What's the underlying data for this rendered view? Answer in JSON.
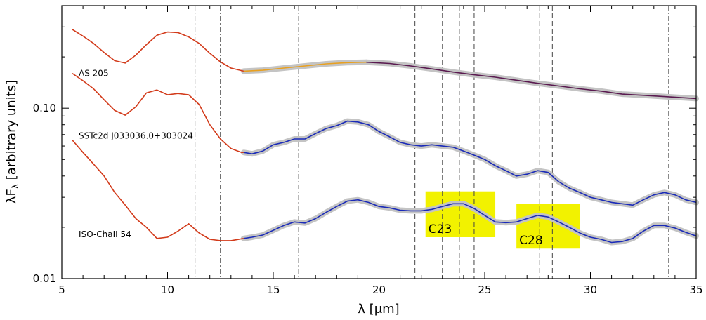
{
  "chart_data": {
    "type": "line",
    "xlabel": "λ [μm]",
    "ylabel": "λF_λ [arbitrary units]",
    "ylabel_main": "λF",
    "ylabel_sub": "λ",
    "ylabel_rest": " [arbitrary units]",
    "xlim": [
      5,
      35
    ],
    "ylim": [
      0.01,
      0.4
    ],
    "yscale": "log",
    "x_ticks": [
      5,
      10,
      15,
      20,
      25,
      30,
      35
    ],
    "x_tick_labels": [
      "5",
      "10",
      "15",
      "20",
      "25",
      "30",
      "35"
    ],
    "y_ticks": [
      0.01,
      0.1
    ],
    "y_tick_labels": [
      "0.01",
      "0.10"
    ],
    "vlines_dashdot": [
      11.3,
      12.5,
      16.2,
      33.7
    ],
    "vlines_dashed": [
      21.7,
      23.0,
      23.8,
      24.5,
      27.6,
      28.2
    ],
    "highlight_boxes": [
      {
        "label": "C23",
        "x": [
          22.2,
          25.5
        ],
        "y": [
          0.0175,
          0.0325
        ],
        "color": "#f2f200"
      },
      {
        "label": "C28",
        "x": [
          26.5,
          29.5
        ],
        "y": [
          0.015,
          0.0275
        ],
        "color": "#f2f200"
      }
    ],
    "sources": [
      {
        "label": "AS 205",
        "label_x": 5.4,
        "label_y": 0.16,
        "segments": [
          {
            "color": "#d23a1a",
            "points": [
              [
                5.5,
                0.29
              ],
              [
                6.0,
                0.265
              ],
              [
                6.5,
                0.24
              ],
              [
                7.0,
                0.212
              ],
              [
                7.5,
                0.19
              ],
              [
                8.0,
                0.184
              ],
              [
                8.5,
                0.205
              ],
              [
                9.0,
                0.236
              ],
              [
                9.5,
                0.268
              ],
              [
                10.0,
                0.28
              ],
              [
                10.5,
                0.278
              ],
              [
                11.0,
                0.262
              ],
              [
                11.5,
                0.24
              ],
              [
                12.0,
                0.21
              ],
              [
                12.5,
                0.187
              ],
              [
                13.0,
                0.172
              ],
              [
                13.6,
                0.165
              ]
            ]
          },
          {
            "color": "#e8a020",
            "points": [
              [
                13.6,
                0.165
              ],
              [
                14.5,
                0.167
              ],
              [
                15.5,
                0.172
              ],
              [
                16.5,
                0.177
              ],
              [
                17.5,
                0.182
              ],
              [
                18.5,
                0.185
              ],
              [
                19.4,
                0.186
              ]
            ]
          },
          {
            "color": "#5a1a50",
            "points": [
              [
                19.4,
                0.186
              ],
              [
                20.5,
                0.183
              ],
              [
                21.5,
                0.177
              ],
              [
                22.5,
                0.17
              ],
              [
                23.5,
                0.163
              ],
              [
                24.5,
                0.157
              ],
              [
                25.5,
                0.152
              ],
              [
                26.5,
                0.146
              ],
              [
                27.5,
                0.14
              ],
              [
                28.5,
                0.135
              ],
              [
                29.5,
                0.13
              ],
              [
                30.5,
                0.126
              ],
              [
                31.5,
                0.121
              ],
              [
                32.5,
                0.119
              ],
              [
                33.5,
                0.117
              ],
              [
                34.5,
                0.115
              ],
              [
                35,
                0.114
              ]
            ]
          }
        ]
      },
      {
        "label": "SSTc2d J033036.0+303024",
        "label_x": 5.4,
        "label_y": 0.069,
        "segments": [
          {
            "color": "#d23a1a",
            "points": [
              [
                5.5,
                0.16
              ],
              [
                6.0,
                0.145
              ],
              [
                6.5,
                0.13
              ],
              [
                7.0,
                0.112
              ],
              [
                7.5,
                0.097
              ],
              [
                8.0,
                0.091
              ],
              [
                8.5,
                0.102
              ],
              [
                9.0,
                0.123
              ],
              [
                9.5,
                0.128
              ],
              [
                10.0,
                0.12
              ],
              [
                10.5,
                0.122
              ],
              [
                11.0,
                0.12
              ],
              [
                11.5,
                0.105
              ],
              [
                12.0,
                0.08
              ],
              [
                12.5,
                0.066
              ],
              [
                13.0,
                0.058
              ],
              [
                13.5,
                0.055
              ],
              [
                13.6,
                0.055
              ]
            ]
          },
          {
            "color": "#1a2ab8",
            "points": [
              [
                13.6,
                0.055
              ],
              [
                14.0,
                0.054
              ],
              [
                14.5,
                0.056
              ],
              [
                15.0,
                0.061
              ],
              [
                15.5,
                0.063
              ],
              [
                16.0,
                0.066
              ],
              [
                16.5,
                0.066
              ],
              [
                17.0,
                0.071
              ],
              [
                17.5,
                0.076
              ],
              [
                18.0,
                0.079
              ],
              [
                18.5,
                0.084
              ],
              [
                19.0,
                0.083
              ],
              [
                19.5,
                0.08
              ],
              [
                20.0,
                0.073
              ],
              [
                20.5,
                0.068
              ],
              [
                21.0,
                0.063
              ],
              [
                21.5,
                0.061
              ],
              [
                22.0,
                0.06
              ],
              [
                22.5,
                0.061
              ],
              [
                23.0,
                0.06
              ],
              [
                23.5,
                0.059
              ],
              [
                24.0,
                0.056
              ],
              [
                24.5,
                0.053
              ],
              [
                25.0,
                0.05
              ],
              [
                25.5,
                0.046
              ],
              [
                26.0,
                0.043
              ],
              [
                26.5,
                0.04
              ],
              [
                27.0,
                0.041
              ],
              [
                27.5,
                0.043
              ],
              [
                28.0,
                0.042
              ],
              [
                28.5,
                0.037
              ],
              [
                29.0,
                0.034
              ],
              [
                29.5,
                0.032
              ],
              [
                30.0,
                0.03
              ],
              [
                30.5,
                0.029
              ],
              [
                31.0,
                0.028
              ],
              [
                31.5,
                0.0275
              ],
              [
                32.0,
                0.027
              ],
              [
                32.5,
                0.029
              ],
              [
                33.0,
                0.031
              ],
              [
                33.5,
                0.032
              ],
              [
                34.0,
                0.031
              ],
              [
                34.5,
                0.029
              ],
              [
                35.0,
                0.028
              ]
            ]
          }
        ]
      },
      {
        "label": "ISO-ChaII 54",
        "label_x": 5.4,
        "label_y": 0.0182,
        "segments": [
          {
            "color": "#d23a1a",
            "points": [
              [
                5.5,
                0.065
              ],
              [
                6.0,
                0.055
              ],
              [
                6.5,
                0.047
              ],
              [
                7.0,
                0.04
              ],
              [
                7.5,
                0.032
              ],
              [
                8.0,
                0.027
              ],
              [
                8.5,
                0.0225
              ],
              [
                9.0,
                0.02
              ],
              [
                9.5,
                0.0172
              ],
              [
                10.0,
                0.0175
              ],
              [
                10.5,
                0.019
              ],
              [
                11.0,
                0.021
              ],
              [
                11.5,
                0.0185
              ],
              [
                12.0,
                0.017
              ],
              [
                12.5,
                0.0167
              ],
              [
                13.0,
                0.0167
              ],
              [
                13.6,
                0.0172
              ]
            ]
          },
          {
            "color": "#1a2ab8",
            "points": [
              [
                13.6,
                0.0172
              ],
              [
                14.0,
                0.0175
              ],
              [
                14.5,
                0.018
              ],
              [
                15.0,
                0.0192
              ],
              [
                15.5,
                0.0205
              ],
              [
                16.0,
                0.0215
              ],
              [
                16.5,
                0.0212
              ],
              [
                17.0,
                0.0225
              ],
              [
                17.5,
                0.0245
              ],
              [
                18.0,
                0.0265
              ],
              [
                18.5,
                0.0285
              ],
              [
                19.0,
                0.029
              ],
              [
                19.5,
                0.028
              ],
              [
                20.0,
                0.0265
              ],
              [
                20.5,
                0.026
              ],
              [
                21.0,
                0.0252
              ],
              [
                21.5,
                0.025
              ],
              [
                22.0,
                0.025
              ],
              [
                22.5,
                0.0255
              ],
              [
                23.0,
                0.0265
              ],
              [
                23.5,
                0.0275
              ],
              [
                24.0,
                0.0275
              ],
              [
                24.5,
                0.0258
              ],
              [
                25.0,
                0.0235
              ],
              [
                25.5,
                0.0215
              ],
              [
                26.0,
                0.0213
              ],
              [
                26.5,
                0.0215
              ],
              [
                27.0,
                0.0225
              ],
              [
                27.5,
                0.0235
              ],
              [
                28.0,
                0.023
              ],
              [
                28.5,
                0.0215
              ],
              [
                29.0,
                0.02
              ],
              [
                29.5,
                0.0185
              ],
              [
                30.0,
                0.0175
              ],
              [
                30.5,
                0.017
              ],
              [
                31.0,
                0.0163
              ],
              [
                31.5,
                0.0165
              ],
              [
                32.0,
                0.0172
              ],
              [
                32.5,
                0.019
              ],
              [
                33.0,
                0.0205
              ],
              [
                33.5,
                0.0205
              ],
              [
                34.0,
                0.0198
              ],
              [
                34.5,
                0.0187
              ],
              [
                35.0,
                0.0178
              ]
            ]
          }
        ]
      }
    ]
  }
}
